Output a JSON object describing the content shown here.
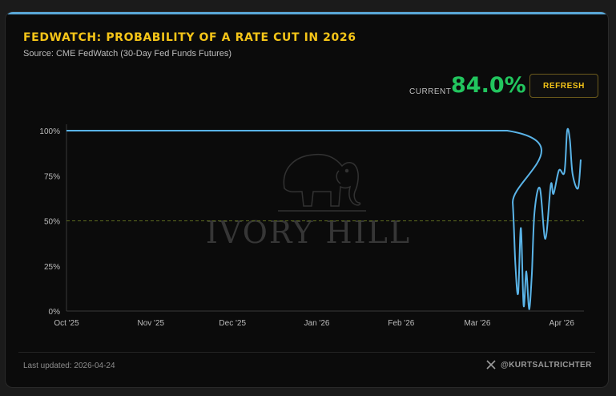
{
  "header": {
    "title": "FEDWATCH: PROBABILITY OF A RATE CUT IN 2026",
    "subtitle": "Source: CME FedWatch (30-Day Fed Funds Futures)",
    "current_label": "CURRENT",
    "current_value": "84.0%",
    "refresh_label": "REFRESH"
  },
  "watermark": {
    "text": "IVORY HILL",
    "icon": "elephant-icon"
  },
  "footer": {
    "updated": "Last updated: 2026-04-24",
    "handle": "@KURTSALTRICHTER",
    "handle_icon": "x-logo-icon"
  },
  "colors": {
    "accent": "#f5c518",
    "line": "#5ab4e8",
    "current": "#22c55e",
    "reference": "#5d6b1f"
  },
  "chart_data": {
    "type": "line",
    "title": "FEDWATCH: PROBABILITY OF A RATE CUT IN 2026",
    "xlabel": "",
    "ylabel": "",
    "ylim": [
      0,
      100
    ],
    "yticks": [
      "0%",
      "25%",
      "50%",
      "75%",
      "100%"
    ],
    "xticks": [
      "Oct '25",
      "Nov '25",
      "Dec '25",
      "Jan '26",
      "Feb '26",
      "Mar '26",
      "Apr '26"
    ],
    "grid": false,
    "reference_line": 50,
    "series": [
      {
        "values": [
          {
            "x": "2025-10-01",
            "y": 100
          },
          {
            "x": "2026-03-12",
            "y": 100
          },
          {
            "x": "2026-03-14",
            "y": 60
          },
          {
            "x": "2026-03-15",
            "y": 25
          },
          {
            "x": "2026-03-16",
            "y": 10
          },
          {
            "x": "2026-03-17",
            "y": 46
          },
          {
            "x": "2026-03-18",
            "y": 3
          },
          {
            "x": "2026-03-19",
            "y": 22
          },
          {
            "x": "2026-03-20",
            "y": 1
          },
          {
            "x": "2026-03-21",
            "y": 20
          },
          {
            "x": "2026-03-22",
            "y": 55
          },
          {
            "x": "2026-03-24",
            "y": 68
          },
          {
            "x": "2026-03-26",
            "y": 40
          },
          {
            "x": "2026-03-28",
            "y": 70
          },
          {
            "x": "2026-03-29",
            "y": 65
          },
          {
            "x": "2026-03-31",
            "y": 78
          },
          {
            "x": "2026-04-02",
            "y": 77
          },
          {
            "x": "2026-04-03",
            "y": 100
          },
          {
            "x": "2026-04-04",
            "y": 95
          },
          {
            "x": "2026-04-05",
            "y": 76
          },
          {
            "x": "2026-04-07",
            "y": 68
          },
          {
            "x": "2026-04-08",
            "y": 84
          }
        ]
      }
    ]
  }
}
